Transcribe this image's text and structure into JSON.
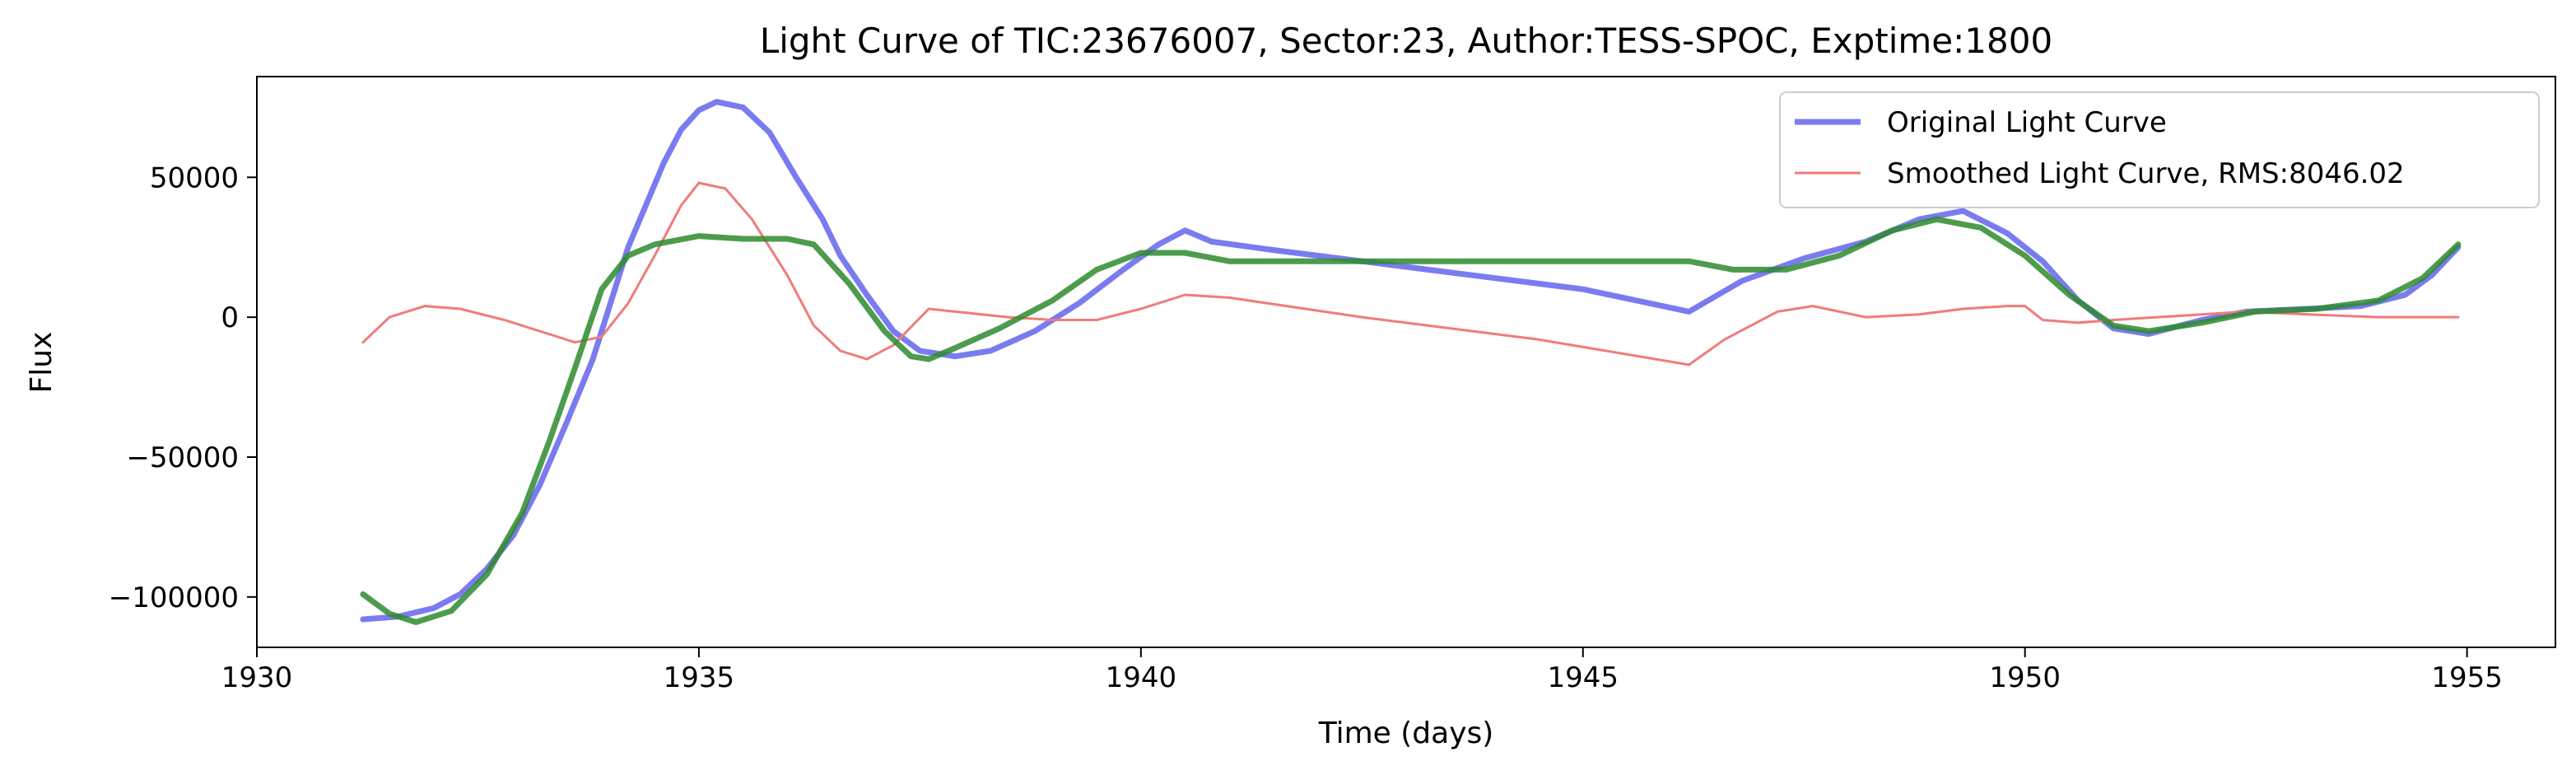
{
  "chart_data": {
    "type": "line",
    "title": "Light Curve of TIC:23676007, Sector:23, Author:TESS-SPOC, Exptime:1800",
    "xlabel": "Time (days)",
    "ylabel": "Flux",
    "xlim": [
      1930,
      1956
    ],
    "ylim": [
      -118000,
      86000
    ],
    "xticks": [
      1930,
      1935,
      1940,
      1945,
      1950,
      1955
    ],
    "xtick_labels": [
      "1930",
      "1935",
      "1940",
      "1945",
      "1950",
      "1955"
    ],
    "yticks": [
      -100000,
      -50000,
      0,
      50000
    ],
    "ytick_labels": [
      "−100000",
      "−50000",
      "0",
      "50000"
    ],
    "grid": false,
    "legend_position": "top-right",
    "series": [
      {
        "name": "Original Light Curve",
        "color": "#7b7bf0",
        "points": [
          [
            1931.2,
            -108000
          ],
          [
            1931.6,
            -107000
          ],
          [
            1932.0,
            -104000
          ],
          [
            1932.3,
            -99000
          ],
          [
            1932.6,
            -90000
          ],
          [
            1932.9,
            -78000
          ],
          [
            1933.2,
            -60000
          ],
          [
            1933.5,
            -38000
          ],
          [
            1933.8,
            -15000
          ],
          [
            1934.0,
            5000
          ],
          [
            1934.2,
            25000
          ],
          [
            1934.4,
            40000
          ],
          [
            1934.6,
            55000
          ],
          [
            1934.8,
            67000
          ],
          [
            1935.0,
            74000
          ],
          [
            1935.2,
            77000
          ],
          [
            1935.5,
            75000
          ],
          [
            1935.8,
            66000
          ],
          [
            1936.1,
            50000
          ],
          [
            1936.4,
            35000
          ],
          [
            1936.6,
            22000
          ],
          [
            1936.9,
            8000
          ],
          [
            1937.2,
            -5000
          ],
          [
            1937.5,
            -12000
          ],
          [
            1937.9,
            -14000
          ],
          [
            1938.3,
            -12000
          ],
          [
            1938.8,
            -5000
          ],
          [
            1939.3,
            5000
          ],
          [
            1939.8,
            17000
          ],
          [
            1940.2,
            26000
          ],
          [
            1940.5,
            31000
          ],
          [
            1940.8,
            27000
          ],
          [
            1941.5,
            24000
          ],
          [
            1943.0,
            18000
          ],
          [
            1945.0,
            10000
          ],
          [
            1946.2,
            2000
          ],
          [
            1946.8,
            13000
          ],
          [
            1947.5,
            21000
          ],
          [
            1948.2,
            27000
          ],
          [
            1948.8,
            35000
          ],
          [
            1949.3,
            38000
          ],
          [
            1949.8,
            30000
          ],
          [
            1950.2,
            20000
          ],
          [
            1950.6,
            6000
          ],
          [
            1951.0,
            -4000
          ],
          [
            1951.4,
            -6000
          ],
          [
            1952.0,
            -1000
          ],
          [
            1952.5,
            2000
          ],
          [
            1953.2,
            3000
          ],
          [
            1953.8,
            4000
          ],
          [
            1954.3,
            8000
          ],
          [
            1954.6,
            15000
          ],
          [
            1954.9,
            25000
          ]
        ]
      },
      {
        "name": "Smoothed Light Curve, RMS:8046.02",
        "color": "#f07b7b",
        "points": [
          [
            1931.2,
            -9000
          ],
          [
            1931.5,
            0
          ],
          [
            1931.9,
            4000
          ],
          [
            1932.3,
            3000
          ],
          [
            1932.8,
            -1000
          ],
          [
            1933.3,
            -6000
          ],
          [
            1933.6,
            -9000
          ],
          [
            1933.9,
            -7000
          ],
          [
            1934.2,
            5000
          ],
          [
            1934.5,
            22000
          ],
          [
            1934.8,
            40000
          ],
          [
            1935.0,
            48000
          ],
          [
            1935.3,
            46000
          ],
          [
            1935.6,
            35000
          ],
          [
            1936.0,
            15000
          ],
          [
            1936.3,
            -3000
          ],
          [
            1936.6,
            -12000
          ],
          [
            1936.9,
            -15000
          ],
          [
            1937.2,
            -10000
          ],
          [
            1937.6,
            3000
          ],
          [
            1937.9,
            2000
          ],
          [
            1938.5,
            0
          ],
          [
            1939.0,
            -1000
          ],
          [
            1939.5,
            -1000
          ],
          [
            1940.0,
            3000
          ],
          [
            1940.5,
            8000
          ],
          [
            1941.0,
            7000
          ],
          [
            1942.5,
            0
          ],
          [
            1944.5,
            -8000
          ],
          [
            1946.2,
            -17000
          ],
          [
            1946.6,
            -8000
          ],
          [
            1947.2,
            2000
          ],
          [
            1947.6,
            4000
          ],
          [
            1948.2,
            0
          ],
          [
            1948.8,
            1000
          ],
          [
            1949.3,
            3000
          ],
          [
            1949.8,
            4000
          ],
          [
            1950.0,
            4000
          ],
          [
            1950.2,
            -1000
          ],
          [
            1950.6,
            -2000
          ],
          [
            1951.0,
            -1000
          ],
          [
            1951.5,
            0
          ],
          [
            1952.0,
            1000
          ],
          [
            1952.5,
            2000
          ],
          [
            1953.2,
            1000
          ],
          [
            1954.0,
            0
          ],
          [
            1954.9,
            0
          ]
        ]
      },
      {
        "name": "",
        "color": "#2e8b2e",
        "points": [
          [
            1931.2,
            -99000
          ],
          [
            1931.5,
            -106000
          ],
          [
            1931.8,
            -109000
          ],
          [
            1932.2,
            -105000
          ],
          [
            1932.6,
            -92000
          ],
          [
            1933.0,
            -70000
          ],
          [
            1933.3,
            -45000
          ],
          [
            1933.6,
            -18000
          ],
          [
            1933.9,
            10000
          ],
          [
            1934.2,
            22000
          ],
          [
            1934.5,
            26000
          ],
          [
            1935.0,
            29000
          ],
          [
            1935.5,
            28000
          ],
          [
            1936.0,
            28000
          ],
          [
            1936.3,
            26000
          ],
          [
            1936.7,
            12000
          ],
          [
            1937.1,
            -5000
          ],
          [
            1937.4,
            -14000
          ],
          [
            1937.6,
            -15000
          ],
          [
            1937.9,
            -11000
          ],
          [
            1938.4,
            -4000
          ],
          [
            1939.0,
            6000
          ],
          [
            1939.5,
            17000
          ],
          [
            1940.0,
            23000
          ],
          [
            1940.5,
            23000
          ],
          [
            1941.0,
            20000
          ],
          [
            1943.0,
            20000
          ],
          [
            1945.0,
            20000
          ],
          [
            1946.2,
            20000
          ],
          [
            1946.7,
            17000
          ],
          [
            1947.3,
            17000
          ],
          [
            1947.9,
            22000
          ],
          [
            1948.5,
            31000
          ],
          [
            1949.0,
            35000
          ],
          [
            1949.5,
            32000
          ],
          [
            1950.0,
            22000
          ],
          [
            1950.5,
            8000
          ],
          [
            1951.0,
            -3000
          ],
          [
            1951.4,
            -5000
          ],
          [
            1952.0,
            -2000
          ],
          [
            1952.6,
            2000
          ],
          [
            1953.3,
            3000
          ],
          [
            1954.0,
            6000
          ],
          [
            1954.5,
            14000
          ],
          [
            1954.9,
            26000
          ]
        ]
      }
    ]
  }
}
